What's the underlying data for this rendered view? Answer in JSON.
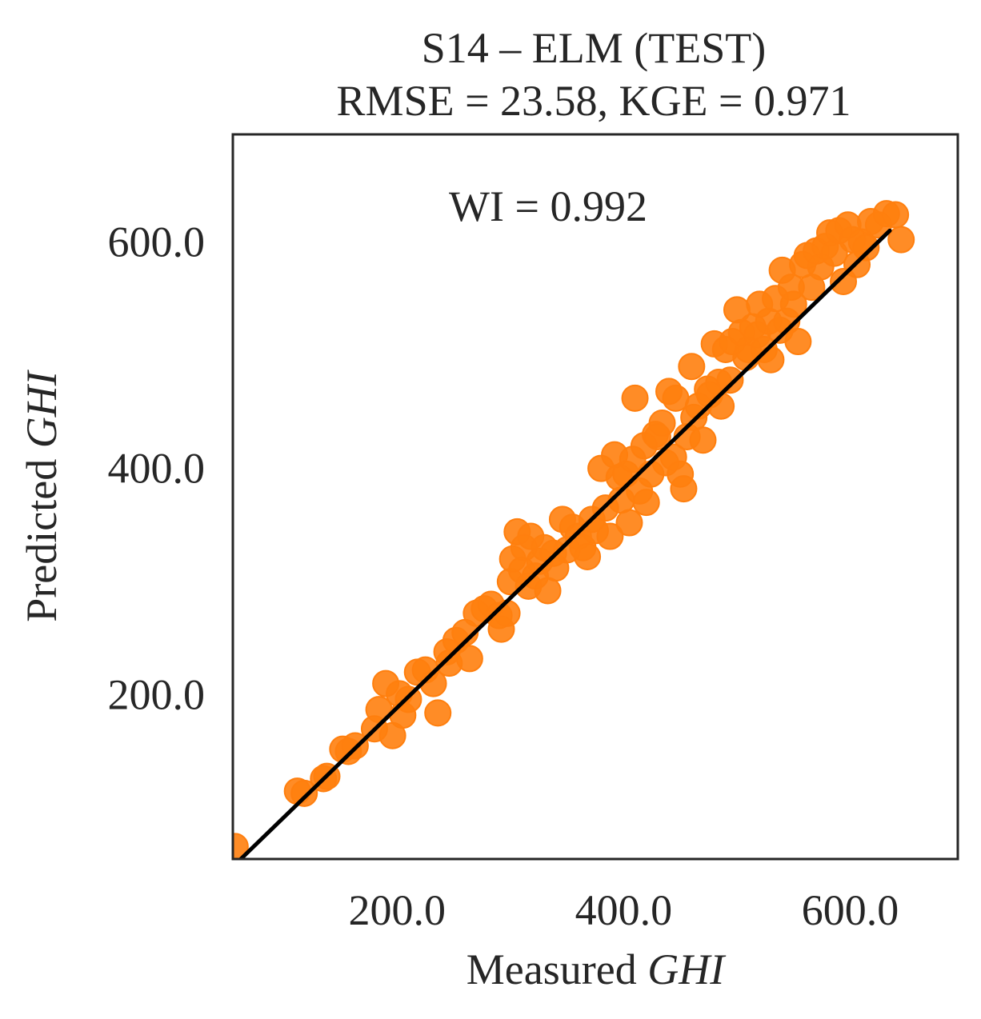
{
  "chart_data": {
    "type": "scatter",
    "title_line1": "S14 – ELM (TEST)",
    "title_line2": "RMSE = 23.58, KGE = 0.971",
    "annotation": "WI = 0.992",
    "xlabel_prefix": "Measured ",
    "xlabel_var": "GHI",
    "ylabel_prefix": "Predicted ",
    "ylabel_var": "GHI",
    "xlim": [
      55,
      695
    ],
    "ylim": [
      55,
      695
    ],
    "xticks": [
      200,
      400,
      600
    ],
    "yticks": [
      200,
      400,
      600
    ],
    "xtick_labels": [
      "200.0",
      "400.0",
      "600.0"
    ],
    "ytick_labels": [
      "200.0",
      "400.0",
      "600.0"
    ],
    "grid": false,
    "fit_line": {
      "x": [
        62,
        635
      ],
      "y": [
        55,
        610
      ]
    },
    "colors": {
      "points": "#ff7f0e",
      "fit_line": "#000000",
      "frame": "#262626",
      "text": "#262626"
    },
    "series": [
      {
        "x": [
          57,
          112,
          118,
          135,
          138,
          152,
          157,
          163,
          180,
          184,
          190,
          196,
          202,
          205,
          210,
          218,
          225,
          232,
          236,
          244,
          246,
          252,
          260,
          264,
          270,
          277,
          283,
          290,
          292,
          297,
          300,
          302,
          306,
          310,
          312,
          316,
          318,
          322,
          326,
          330,
          333,
          338,
          340,
          346,
          350,
          355,
          360,
          364,
          368,
          372,
          375,
          380,
          384,
          388,
          392,
          396,
          398,
          402,
          405,
          408,
          410,
          414,
          418,
          420,
          424,
          428,
          430,
          434,
          437,
          440,
          444,
          446,
          450,
          453,
          456,
          460,
          462,
          466,
          470,
          474,
          476,
          480,
          484,
          486,
          490,
          494,
          496,
          500,
          504,
          508,
          510,
          514,
          518,
          520,
          524,
          528,
          530,
          534,
          538,
          540,
          544,
          548,
          550,
          554,
          558,
          562,
          566,
          570,
          574,
          578,
          582,
          586,
          590,
          594,
          598,
          602,
          606,
          610,
          614,
          618,
          625,
          632,
          640,
          645
        ],
        "y": [
          66,
          115,
          113,
          126,
          128,
          152,
          150,
          155,
          170,
          187,
          210,
          164,
          201,
          182,
          196,
          220,
          222,
          210,
          184,
          238,
          228,
          248,
          255,
          232,
          272,
          276,
          280,
          270,
          258,
          272,
          300,
          320,
          344,
          310,
          330,
          296,
          340,
          305,
          318,
          330,
          292,
          325,
          312,
          355,
          328,
          348,
          340,
          330,
          322,
          355,
          345,
          400,
          365,
          340,
          412,
          392,
          372,
          395,
          352,
          408,
          462,
          380,
          420,
          370,
          395,
          430,
          428,
          440,
          405,
          468,
          410,
          462,
          395,
          382,
          428,
          490,
          445,
          455,
          425,
          470,
          465,
          510,
          476,
          455,
          505,
          478,
          512,
          540,
          520,
          498,
          505,
          525,
          518,
          545,
          505,
          530,
          496,
          550,
          522,
          575,
          530,
          560,
          545,
          512,
          580,
          588,
          560,
          592,
          578,
          596,
          608,
          590,
          610,
          565,
          615,
          602,
          580,
          600,
          595,
          618,
          615,
          625,
          624,
          602
        ]
      }
    ]
  }
}
